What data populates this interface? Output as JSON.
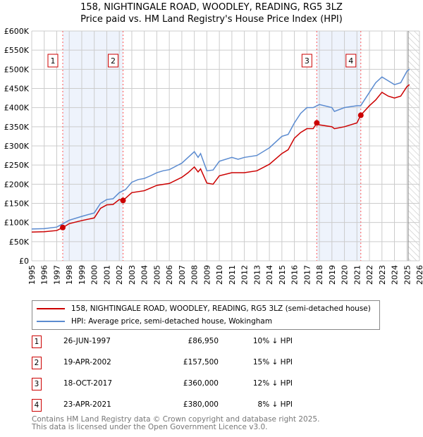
{
  "title_line1": "158, NIGHTINGALE ROAD, WOODLEY, READING, RG5 3LZ",
  "title_line2": "Price paid vs. HM Land Registry's House Price Index (HPI)",
  "chart_data": {
    "type": "line",
    "xlim": [
      1995,
      2026
    ],
    "ylim": [
      0,
      600000
    ],
    "y_ticks": [
      0,
      50000,
      100000,
      150000,
      200000,
      250000,
      300000,
      350000,
      400000,
      450000,
      500000,
      550000,
      600000
    ],
    "y_tick_labels": [
      "£0",
      "£50K",
      "£100K",
      "£150K",
      "£200K",
      "£250K",
      "£300K",
      "£350K",
      "£400K",
      "£450K",
      "£500K",
      "£550K",
      "£600K"
    ],
    "x_ticks": [
      1995,
      1996,
      1997,
      1998,
      1999,
      2000,
      2001,
      2002,
      2003,
      2004,
      2005,
      2006,
      2007,
      2008,
      2009,
      2010,
      2011,
      2012,
      2013,
      2014,
      2015,
      2016,
      2017,
      2018,
      2019,
      2020,
      2021,
      2022,
      2023,
      2024,
      2025,
      2026
    ],
    "grid": true,
    "shaded_periods": [
      [
        1997.48,
        2002.3
      ],
      [
        2017.79,
        2021.31
      ]
    ],
    "forecast_hatch_from": 2025.1,
    "series": [
      {
        "name": "158, NIGHTINGALE ROAD, WOODLEY, READING, RG5 3LZ (semi-detached house)",
        "color": "#cc0000",
        "x": [
          1995,
          1996,
          1997,
          1997.5,
          1998,
          1999,
          2000,
          2000.5,
          2001,
          2001.5,
          2002,
          2002.3,
          2003,
          2004,
          2004.5,
          2005,
          2006,
          2007,
          2007.5,
          2008,
          2008.3,
          2008.5,
          2009,
          2009.5,
          2010,
          2011,
          2012,
          2013,
          2014,
          2015,
          2015.5,
          2016,
          2016.5,
          2017,
          2017.5,
          2017.8,
          2018,
          2019,
          2019.2,
          2020,
          2021,
          2021.3,
          2022,
          2022.5,
          2023,
          2023.5,
          2024,
          2024.5,
          2025,
          2025.2
        ],
        "y": [
          75000,
          76000,
          79000,
          87000,
          97000,
          105000,
          112000,
          137000,
          146000,
          147000,
          160000,
          157500,
          178000,
          183000,
          190000,
          197000,
          202000,
          218000,
          230000,
          245000,
          232000,
          240000,
          203000,
          200000,
          222000,
          230000,
          230000,
          235000,
          252000,
          280000,
          290000,
          320000,
          335000,
          345000,
          345000,
          360000,
          355000,
          350000,
          345000,
          350000,
          360000,
          380000,
          405000,
          420000,
          440000,
          430000,
          425000,
          430000,
          455000,
          460000
        ]
      },
      {
        "name": "HPI: Average price, semi-detached house, Wokingham",
        "color": "#5b8bd0",
        "x": [
          1995,
          1996,
          1997,
          1997.5,
          1998,
          1999,
          2000,
          2000.5,
          2001,
          2001.5,
          2002,
          2002.5,
          2003,
          2003.5,
          2004,
          2004.5,
          2005,
          2005.5,
          2006,
          2007,
          2007.5,
          2008,
          2008.3,
          2008.5,
          2009,
          2009.5,
          2010,
          2011,
          2011.5,
          2012,
          2013,
          2014,
          2015,
          2015.5,
          2016,
          2016.5,
          2017,
          2017.5,
          2018,
          2019,
          2019.2,
          2020,
          2021,
          2021.3,
          2022,
          2022.5,
          2023,
          2023.5,
          2024,
          2024.5,
          2025,
          2025.2
        ],
        "y": [
          83000,
          84000,
          88000,
          97000,
          106000,
          116000,
          125000,
          150000,
          160000,
          162000,
          178000,
          186000,
          205000,
          212000,
          215000,
          222000,
          230000,
          235000,
          238000,
          255000,
          270000,
          285000,
          270000,
          280000,
          235000,
          237000,
          260000,
          270000,
          265000,
          270000,
          275000,
          295000,
          325000,
          330000,
          360000,
          385000,
          400000,
          400000,
          408000,
          400000,
          390000,
          400000,
          405000,
          405000,
          440000,
          465000,
          480000,
          470000,
          460000,
          465000,
          495000,
          500000
        ]
      }
    ],
    "sales": [
      {
        "label": "1",
        "x": 1997.48,
        "date": "26-JUN-1997",
        "price": "£86,950",
        "value": 86950,
        "hpi": "10% ↓ HPI"
      },
      {
        "label": "2",
        "x": 2002.3,
        "date": "19-APR-2002",
        "price": "£157,500",
        "value": 157500,
        "hpi": "15% ↓ HPI"
      },
      {
        "label": "3",
        "x": 2017.79,
        "date": "18-OCT-2017",
        "price": "£360,000",
        "value": 360000,
        "hpi": "12% ↓ HPI"
      },
      {
        "label": "4",
        "x": 2021.31,
        "date": "23-APR-2021",
        "price": "£380,000",
        "value": 380000,
        "hpi": "8% ↓ HPI"
      }
    ]
  },
  "footer_line1": "Contains HM Land Registry data © Crown copyright and database right 2025.",
  "footer_line2": "This data is licensed under the Open Government Licence v3.0."
}
